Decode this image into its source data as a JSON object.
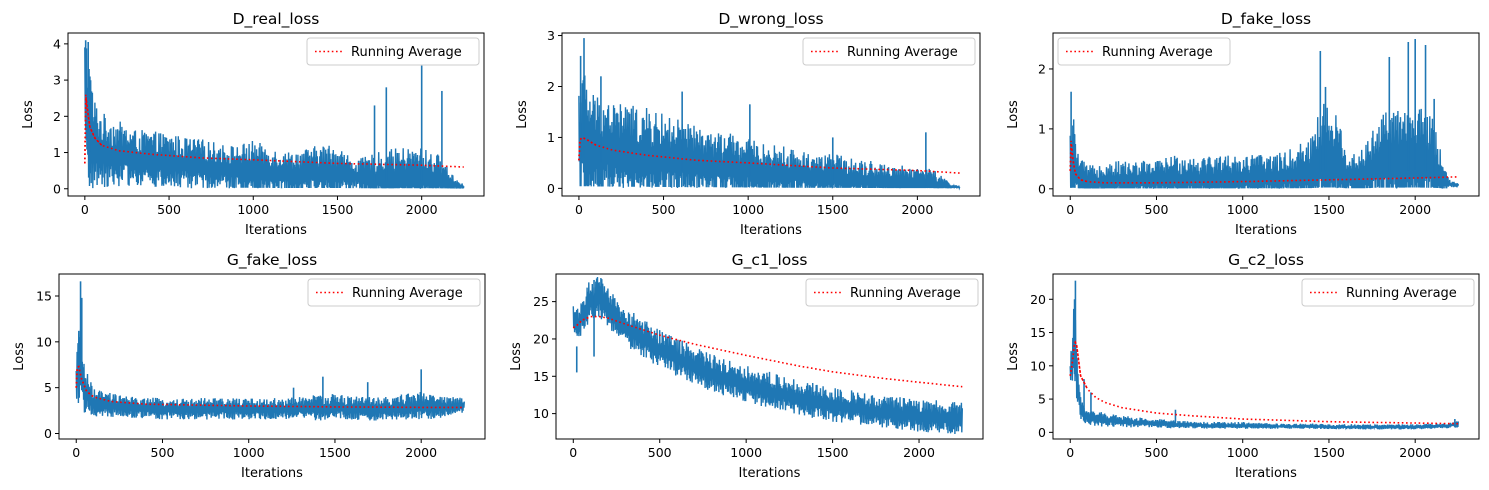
{
  "figure": {
    "colors": {
      "series": "#1f77b4",
      "running_average": "#ff0000",
      "axes": "#000000",
      "legend_border": "#cccccc"
    }
  },
  "chart_data": [
    {
      "type": "line",
      "title": "D_real_loss",
      "xlabel": "Iterations",
      "ylabel": "Loss",
      "xlim": [
        -100,
        2370
      ],
      "ylim": [
        -0.2,
        4.3
      ],
      "xticks": [
        0,
        500,
        1000,
        1500,
        2000
      ],
      "yticks": [
        0,
        1,
        2,
        3,
        4
      ],
      "legend_position": "top-right",
      "series": [
        {
          "style": "solid",
          "color": "#1f77b4",
          "x": [
            0,
            20,
            50,
            100,
            200,
            300,
            400,
            500,
            600,
            700,
            800,
            900,
            1000,
            1100,
            1200,
            1300,
            1400,
            1500,
            1600,
            1700,
            1800,
            1900,
            2000,
            2100,
            2200,
            2250
          ],
          "values": [
            2.6,
            1.6,
            1.2,
            1.0,
            0.9,
            0.8,
            0.75,
            0.7,
            0.65,
            0.6,
            0.55,
            0.5,
            0.5,
            0.45,
            0.4,
            0.4,
            0.45,
            0.4,
            0.35,
            0.25,
            0.25,
            0.3,
            0.3,
            0.25,
            0.1,
            0.05
          ],
          "spread": [
            1.2,
            1.8,
            1.0,
            0.8,
            0.7,
            0.6,
            0.6,
            0.6,
            0.55,
            0.55,
            0.5,
            0.5,
            0.6,
            0.5,
            0.45,
            0.5,
            0.55,
            0.6,
            0.3,
            0.5,
            0.6,
            0.6,
            0.6,
            0.5,
            0.15,
            0.05
          ],
          "peaks": [
            {
              "x": 5,
              "y": 4.1
            },
            {
              "x": 20,
              "y": 4.05
            },
            {
              "x": 30,
              "y": 3.1
            },
            {
              "x": 1720,
              "y": 2.3
            },
            {
              "x": 1790,
              "y": 2.8
            },
            {
              "x": 2000,
              "y": 3.4
            },
            {
              "x": 2120,
              "y": 2.7
            }
          ]
        },
        {
          "name": "Running Average",
          "style": "dotted",
          "color": "#ff0000",
          "x": [
            0,
            5,
            15,
            30,
            60,
            100,
            200,
            400,
            700,
            1000,
            1500,
            2000,
            2250
          ],
          "values": [
            0.7,
            2.6,
            2.2,
            1.7,
            1.4,
            1.2,
            1.05,
            0.95,
            0.85,
            0.8,
            0.7,
            0.65,
            0.6
          ]
        }
      ]
    },
    {
      "type": "line",
      "title": "D_wrong_loss",
      "xlabel": "Iterations",
      "ylabel": "Loss",
      "xlim": [
        -100,
        2370
      ],
      "ylim": [
        -0.15,
        3.05
      ],
      "xticks": [
        0,
        500,
        1000,
        1500,
        2000
      ],
      "yticks": [
        0,
        1,
        2,
        3
      ],
      "legend_position": "top-right",
      "series": [
        {
          "style": "solid",
          "color": "#1f77b4",
          "x": [
            0,
            20,
            50,
            100,
            200,
            300,
            400,
            500,
            600,
            700,
            800,
            900,
            1000,
            1100,
            1200,
            1300,
            1400,
            1500,
            1600,
            1700,
            1800,
            1900,
            2000,
            2100,
            2200,
            2250
          ],
          "values": [
            0.8,
            0.9,
            0.8,
            0.75,
            0.7,
            0.65,
            0.6,
            0.55,
            0.5,
            0.45,
            0.4,
            0.38,
            0.35,
            0.3,
            0.28,
            0.25,
            0.22,
            0.2,
            0.18,
            0.15,
            0.12,
            0.1,
            0.1,
            0.08,
            0.03,
            0.02
          ],
          "spread": [
            0.9,
            1.2,
            0.9,
            0.8,
            0.75,
            0.7,
            0.7,
            0.65,
            0.6,
            0.55,
            0.5,
            0.5,
            0.45,
            0.4,
            0.4,
            0.35,
            0.35,
            0.35,
            0.3,
            0.3,
            0.25,
            0.25,
            0.25,
            0.2,
            0.05,
            0.02
          ],
          "peaks": [
            {
              "x": 30,
              "y": 2.95
            },
            {
              "x": 10,
              "y": 2.6
            },
            {
              "x": 130,
              "y": 2.2
            },
            {
              "x": 610,
              "y": 1.9
            },
            {
              "x": 1010,
              "y": 1.65
            },
            {
              "x": 1500,
              "y": 1.0
            },
            {
              "x": 2050,
              "y": 1.1
            }
          ]
        },
        {
          "name": "Running Average",
          "style": "dotted",
          "color": "#ff0000",
          "x": [
            0,
            5,
            20,
            50,
            100,
            200,
            400,
            700,
            1000,
            1500,
            2000,
            2250
          ],
          "values": [
            0.55,
            0.95,
            1.0,
            0.95,
            0.85,
            0.75,
            0.65,
            0.55,
            0.5,
            0.4,
            0.35,
            0.3
          ]
        }
      ]
    },
    {
      "type": "line",
      "title": "D_fake_loss",
      "xlabel": "Iterations",
      "ylabel": "Loss",
      "xlim": [
        -100,
        2370
      ],
      "ylim": [
        -0.12,
        2.6
      ],
      "xticks": [
        0,
        500,
        1000,
        1500,
        2000
      ],
      "yticks": [
        0,
        1,
        2
      ],
      "legend_position": "top-left",
      "series": [
        {
          "style": "solid",
          "color": "#1f77b4",
          "x": [
            0,
            20,
            50,
            100,
            200,
            300,
            400,
            500,
            600,
            700,
            800,
            900,
            1000,
            1100,
            1200,
            1300,
            1400,
            1450,
            1500,
            1550,
            1600,
            1700,
            1800,
            1900,
            2000,
            2100,
            2200,
            2250
          ],
          "values": [
            0.3,
            0.35,
            0.15,
            0.1,
            0.12,
            0.12,
            0.12,
            0.13,
            0.15,
            0.15,
            0.15,
            0.15,
            0.15,
            0.17,
            0.17,
            0.2,
            0.25,
            0.4,
            0.45,
            0.4,
            0.2,
            0.2,
            0.4,
            0.4,
            0.45,
            0.35,
            0.08,
            0.06
          ],
          "spread": [
            0.5,
            0.6,
            0.3,
            0.2,
            0.25,
            0.25,
            0.25,
            0.25,
            0.3,
            0.3,
            0.3,
            0.3,
            0.3,
            0.3,
            0.3,
            0.35,
            0.5,
            0.7,
            0.8,
            0.6,
            0.3,
            0.35,
            0.6,
            0.7,
            0.7,
            0.6,
            0.05,
            0.03
          ],
          "peaks": [
            {
              "x": 5,
              "y": 1.62
            },
            {
              "x": 25,
              "y": 0.9
            },
            {
              "x": 1450,
              "y": 2.3
            },
            {
              "x": 1480,
              "y": 1.7
            },
            {
              "x": 1850,
              "y": 2.2
            },
            {
              "x": 1960,
              "y": 2.45
            },
            {
              "x": 2000,
              "y": 2.5
            },
            {
              "x": 2060,
              "y": 2.4
            },
            {
              "x": 2110,
              "y": 1.5
            }
          ]
        },
        {
          "name": "Running Average",
          "style": "dotted",
          "color": "#ff0000",
          "x": [
            0,
            5,
            15,
            30,
            60,
            100,
            200,
            500,
            1000,
            1500,
            2000,
            2250
          ],
          "values": [
            0.3,
            0.8,
            0.5,
            0.25,
            0.15,
            0.12,
            0.1,
            0.1,
            0.12,
            0.15,
            0.18,
            0.2
          ]
        }
      ]
    },
    {
      "type": "line",
      "title": "G_fake_loss",
      "xlabel": "Iterations",
      "ylabel": "Loss",
      "xlim": [
        -100,
        2370
      ],
      "ylim": [
        -0.6,
        17.4
      ],
      "xticks": [
        0,
        500,
        1000,
        1500,
        2000
      ],
      "yticks": [
        0,
        5,
        10,
        15
      ],
      "legend_position": "top-right",
      "series": [
        {
          "style": "solid",
          "color": "#1f77b4",
          "x": [
            0,
            10,
            20,
            30,
            50,
            100,
            200,
            300,
            400,
            500,
            600,
            700,
            800,
            900,
            1000,
            1100,
            1200,
            1300,
            1400,
            1500,
            1600,
            1700,
            1800,
            1900,
            2000,
            2100,
            2200,
            2250
          ],
          "values": [
            5.0,
            6.5,
            8.0,
            7.0,
            4.5,
            3.2,
            3.0,
            2.8,
            2.7,
            2.6,
            2.6,
            2.6,
            2.6,
            2.6,
            2.6,
            2.6,
            2.6,
            2.7,
            2.7,
            2.8,
            2.7,
            2.6,
            2.6,
            2.8,
            2.9,
            2.8,
            3.0,
            3.0
          ],
          "spread": [
            1.5,
            3.0,
            4.0,
            3.0,
            2.0,
            1.2,
            1.0,
            0.9,
            0.9,
            0.9,
            0.9,
            0.9,
            0.9,
            0.9,
            0.9,
            0.9,
            0.9,
            1.0,
            1.1,
            1.1,
            1.0,
            1.0,
            1.0,
            1.1,
            1.2,
            1.0,
            0.7,
            0.6
          ],
          "peaks": [
            {
              "x": 25,
              "y": 16.6
            },
            {
              "x": 32,
              "y": 14.8
            },
            {
              "x": 15,
              "y": 11.2
            },
            {
              "x": 1430,
              "y": 6.2
            },
            {
              "x": 1690,
              "y": 5.6
            },
            {
              "x": 2000,
              "y": 7.0
            },
            {
              "x": 1260,
              "y": 5.0
            }
          ]
        },
        {
          "name": "Running Average",
          "style": "dotted",
          "color": "#ff0000",
          "x": [
            0,
            5,
            15,
            30,
            60,
            100,
            200,
            400,
            700,
            1000,
            1500,
            2000,
            2250
          ],
          "values": [
            5.0,
            7.2,
            7.3,
            6.0,
            4.6,
            4.0,
            3.5,
            3.2,
            3.1,
            3.0,
            2.9,
            2.85,
            2.85
          ]
        }
      ]
    },
    {
      "type": "line",
      "title": "G_c1_loss",
      "xlabel": "Iterations",
      "ylabel": "Loss",
      "xlim": [
        -100,
        2370
      ],
      "ylim": [
        6.6,
        28.7
      ],
      "xticks": [
        0,
        500,
        1000,
        1500,
        2000
      ],
      "yticks": [
        10,
        15,
        20,
        25
      ],
      "legend_position": "top-right",
      "series": [
        {
          "style": "solid",
          "color": "#1f77b4",
          "x": [
            0,
            30,
            60,
            100,
            150,
            200,
            300,
            400,
            500,
            600,
            700,
            800,
            900,
            1000,
            1100,
            1200,
            1300,
            1400,
            1500,
            1600,
            1700,
            1800,
            1900,
            2000,
            2100,
            2200,
            2250
          ],
          "values": [
            22.5,
            22.0,
            23.5,
            25.0,
            25.5,
            24.0,
            21.5,
            20.0,
            18.5,
            17.3,
            16.2,
            15.3,
            14.5,
            13.8,
            13.2,
            12.6,
            12.0,
            11.5,
            11.0,
            10.8,
            10.4,
            10.0,
            9.8,
            9.6,
            9.4,
            9.2,
            9.2
          ],
          "spread": [
            1.5,
            1.8,
            2.0,
            2.2,
            2.2,
            2.0,
            2.0,
            2.0,
            2.0,
            2.0,
            2.0,
            2.0,
            2.0,
            1.9,
            1.9,
            1.8,
            1.8,
            1.8,
            1.8,
            1.7,
            1.7,
            1.7,
            1.7,
            1.7,
            1.7,
            1.7,
            1.6
          ],
          "peaks": [
            {
              "x": 120,
              "y": 27.9
            },
            {
              "x": 20,
              "y": 19.0
            }
          ]
        },
        {
          "name": "Running Average",
          "style": "dotted",
          "color": "#ff0000",
          "x": [
            0,
            20,
            50,
            100,
            150,
            200,
            300,
            500,
            700,
            1000,
            1300,
            1500,
            1800,
            2000,
            2250
          ],
          "values": [
            21.5,
            21.8,
            22.5,
            23.0,
            23.0,
            22.8,
            22.0,
            20.5,
            19.3,
            17.8,
            16.4,
            15.6,
            14.7,
            14.2,
            13.6
          ]
        }
      ]
    },
    {
      "type": "line",
      "title": "G_c2_loss",
      "xlabel": "Iterations",
      "ylabel": "Loss",
      "xlim": [
        -100,
        2370
      ],
      "ylim": [
        -1.0,
        23.8
      ],
      "xticks": [
        0,
        500,
        1000,
        1500,
        2000
      ],
      "yticks": [
        0,
        5,
        10,
        15,
        20
      ],
      "legend_position": "top-right",
      "series": [
        {
          "style": "solid",
          "color": "#1f77b4",
          "x": [
            0,
            10,
            20,
            30,
            40,
            60,
            100,
            200,
            300,
            400,
            500,
            600,
            700,
            800,
            900,
            1000,
            1200,
            1400,
            1600,
            1800,
            2000,
            2200,
            2250
          ],
          "values": [
            8.0,
            11.0,
            13.0,
            12.0,
            7.0,
            3.5,
            2.2,
            1.8,
            1.6,
            1.4,
            1.3,
            1.2,
            1.1,
            1.0,
            1.0,
            1.0,
            0.9,
            0.9,
            0.8,
            0.8,
            0.8,
            1.0,
            1.2
          ],
          "spread": [
            1.5,
            3.0,
            4.0,
            4.0,
            3.0,
            1.5,
            1.0,
            0.8,
            0.7,
            0.6,
            0.5,
            0.5,
            0.4,
            0.4,
            0.4,
            0.4,
            0.3,
            0.3,
            0.3,
            0.3,
            0.3,
            0.3,
            0.4
          ],
          "peaks": [
            {
              "x": 30,
              "y": 22.8
            },
            {
              "x": 25,
              "y": 20.0
            },
            {
              "x": 80,
              "y": 8.0
            },
            {
              "x": 120,
              "y": 6.0
            },
            {
              "x": 610,
              "y": 3.4
            },
            {
              "x": 2230,
              "y": 2.0
            }
          ]
        },
        {
          "name": "Running Average",
          "style": "dotted",
          "color": "#ff0000",
          "x": [
            0,
            10,
            25,
            35,
            60,
            100,
            150,
            200,
            300,
            500,
            700,
            1000,
            1500,
            2000,
            2250
          ],
          "values": [
            8.5,
            10.0,
            13.5,
            13.5,
            8.5,
            6.5,
            5.2,
            4.5,
            3.7,
            2.9,
            2.5,
            2.0,
            1.6,
            1.4,
            1.3
          ]
        }
      ]
    }
  ]
}
